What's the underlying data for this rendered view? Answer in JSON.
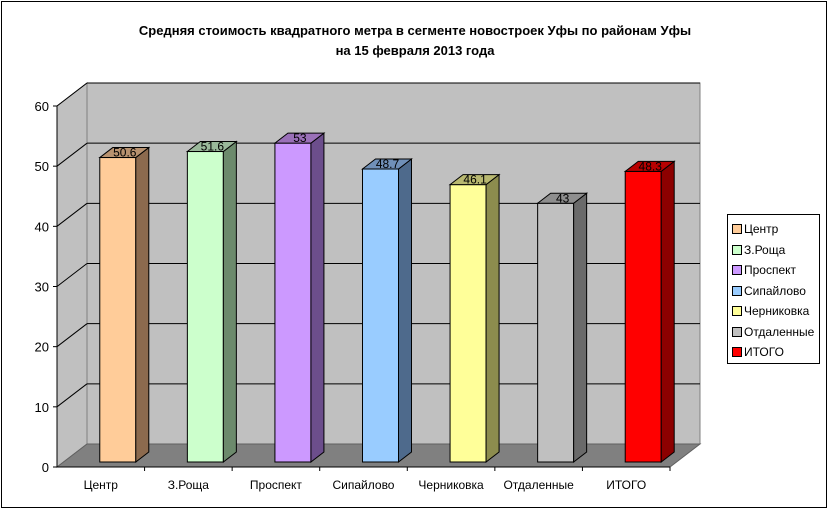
{
  "chart_data": {
    "type": "bar",
    "style": "3d-column",
    "title": "Средняя стоимость квадратного метра в сегменте новостроек Уфы по районам Уфы на 15 февраля 2013 года",
    "title_lines": [
      "Средняя стоимость квадратного метра в сегменте новостроек Уфы по районам Уфы",
      "на 15 февраля 2013 года"
    ],
    "categories": [
      "Центр",
      "З.Роща",
      "Проспект",
      "Сипайлово",
      "Черниковка",
      "Отдаленные",
      "ИТОГО"
    ],
    "values": [
      50.6,
      51.6,
      53,
      48.7,
      46.1,
      43,
      48.3
    ],
    "data_labels": [
      "50.6",
      "51.6",
      "53",
      "48.7",
      "46.1",
      "43",
      "48.3"
    ],
    "colors": [
      "#FFCC99",
      "#CCFFCC",
      "#CC99FF",
      "#99CCFF",
      "#FFFF99",
      "#C0C0C0",
      "#FF0000"
    ],
    "side_colors": [
      "#8C6A4E",
      "#6C8A6C",
      "#6C4E8C",
      "#4E6A8C",
      "#8C8C4E",
      "#6A6A6A",
      "#8C0000"
    ],
    "top_colors": [
      "#B8926F",
      "#9AB89A",
      "#9A70B8",
      "#7090B8",
      "#B8B870",
      "#8E8E8E",
      "#B80000"
    ],
    "xlabel": "",
    "ylabel": "",
    "ylim": [
      0,
      60
    ],
    "yticks": [
      "0",
      "10",
      "20",
      "30",
      "40",
      "50",
      "60"
    ],
    "grid": true,
    "legend_position": "right",
    "legend": [
      "Центр",
      "З.Роща",
      "Проспект",
      "Сипайлово",
      "Черниковка",
      "Отдаленные",
      "ИТОГО"
    ]
  }
}
